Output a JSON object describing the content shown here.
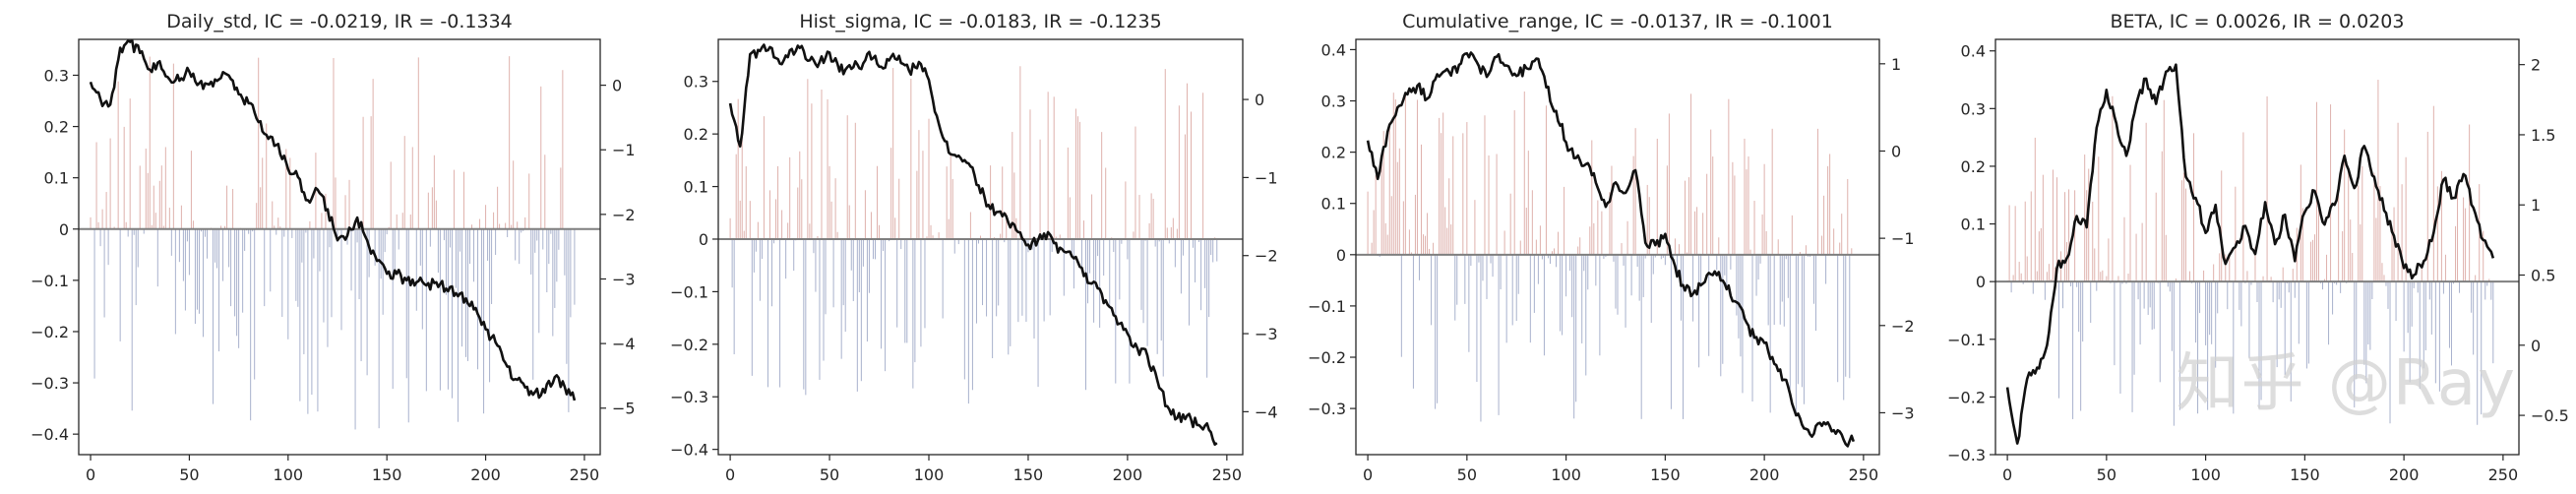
{
  "figure": {
    "watermark": "知乎 @Ray"
  },
  "chart_data": [
    {
      "type": "bar+line",
      "title": "Daily_std, IC = -0.0219, IR = -0.1334",
      "xlabel": "",
      "ylabel": "",
      "ylabel_right": "",
      "xlim": [
        -6,
        258
      ],
      "ylim": [
        -0.44,
        0.37
      ],
      "y2lim": [
        -5.72,
        0.71
      ],
      "xticks": [
        0,
        50,
        100,
        150,
        200,
        250
      ],
      "yticks": [
        0.3,
        0.2,
        0.1,
        0.0,
        -0.1,
        -0.2,
        -0.3,
        -0.4
      ],
      "y2ticks": [
        0,
        -1,
        -2,
        -3,
        -4,
        -5
      ],
      "grid": false,
      "bar_seed": 11,
      "bar_pos_max": 0.34,
      "bar_neg_max": 0.4,
      "bar_pos_frac": 0.42,
      "bar_colors": {
        "positive": "#d9a49f",
        "negative": "#9aa4c4"
      },
      "line_color": "#111111",
      "ic_series_summary": {
        "n": 246,
        "positive_color": "#d9a49f",
        "negative_color": "#9aa4c4"
      },
      "cumulative_ic_keypoints": {
        "x": [
          0,
          5,
          10,
          15,
          20,
          25,
          30,
          35,
          40,
          45,
          50,
          55,
          60,
          65,
          70,
          75,
          80,
          85,
          90,
          95,
          100,
          105,
          110,
          115,
          120,
          125,
          130,
          135,
          140,
          145,
          150,
          155,
          160,
          165,
          170,
          175,
          180,
          185,
          190,
          195,
          200,
          205,
          210,
          215,
          220,
          225,
          230,
          235,
          240,
          245
        ],
        "y": [
          0.05,
          -0.22,
          -0.3,
          0.58,
          0.67,
          0.5,
          0.24,
          0.37,
          0.09,
          0.07,
          0.21,
          0.03,
          0.01,
          0.09,
          0.15,
          -0.14,
          -0.28,
          -0.57,
          -0.83,
          -0.91,
          -1.3,
          -1.42,
          -1.78,
          -1.62,
          -1.92,
          -2.4,
          -2.33,
          -2.05,
          -2.4,
          -2.72,
          -2.92,
          -2.92,
          -3.02,
          -3.05,
          -3.1,
          -3.05,
          -3.15,
          -3.22,
          -3.3,
          -3.45,
          -3.78,
          -3.98,
          -4.3,
          -4.55,
          -4.68,
          -4.75,
          -4.76,
          -4.52,
          -4.67,
          -4.88
        ]
      }
    },
    {
      "type": "bar+line",
      "title": "Hist_sigma, IC = -0.0183, IR = -0.1235",
      "xlabel": "",
      "ylabel": "",
      "ylabel_right": "",
      "xlim": [
        -6,
        258
      ],
      "ylim": [
        -0.41,
        0.38
      ],
      "y2lim": [
        -4.55,
        0.77
      ],
      "xticks": [
        0,
        50,
        100,
        150,
        200,
        250
      ],
      "yticks": [
        0.3,
        0.2,
        0.1,
        0.0,
        -0.1,
        -0.2,
        -0.3,
        -0.4
      ],
      "y2ticks": [
        0,
        -1,
        -2,
        -3,
        -4
      ],
      "grid": false,
      "bar_seed": 23,
      "bar_pos_max": 0.33,
      "bar_neg_max": 0.32,
      "bar_pos_frac": 0.45,
      "bar_colors": {
        "positive": "#d9a49f",
        "negative": "#9aa4c4"
      },
      "line_color": "#111111",
      "cumulative_ic_keypoints": {
        "x": [
          0,
          5,
          10,
          15,
          20,
          25,
          30,
          35,
          40,
          45,
          50,
          55,
          60,
          65,
          70,
          75,
          80,
          85,
          90,
          95,
          100,
          105,
          110,
          115,
          120,
          125,
          130,
          135,
          140,
          145,
          150,
          155,
          160,
          165,
          170,
          175,
          180,
          185,
          190,
          195,
          200,
          205,
          210,
          215,
          220,
          225,
          230,
          235,
          240,
          245
        ],
        "y": [
          -0.05,
          -0.6,
          0.58,
          0.62,
          0.67,
          0.46,
          0.63,
          0.66,
          0.5,
          0.48,
          0.6,
          0.36,
          0.44,
          0.4,
          0.61,
          0.42,
          0.5,
          0.56,
          0.37,
          0.48,
          0.25,
          -0.31,
          -0.68,
          -0.72,
          -0.82,
          -1.1,
          -1.35,
          -1.44,
          -1.58,
          -1.7,
          -1.86,
          -1.8,
          -1.7,
          -1.96,
          -1.95,
          -2.08,
          -2.35,
          -2.42,
          -2.63,
          -2.88,
          -3.0,
          -3.19,
          -3.28,
          -3.6,
          -3.93,
          -4.08,
          -4.05,
          -4.17,
          -4.15,
          -4.4
        ]
      }
    },
    {
      "type": "bar+line",
      "title": "Cumulative_range, IC = -0.0137, IR = -0.1001",
      "xlabel": "",
      "ylabel": "",
      "ylabel_right": "",
      "xlim": [
        -6,
        258
      ],
      "ylim": [
        -0.39,
        0.42
      ],
      "y2lim": [
        -3.48,
        1.28
      ],
      "xticks": [
        0,
        50,
        100,
        150,
        200,
        250
      ],
      "yticks": [
        0.4,
        0.3,
        0.2,
        0.1,
        0.0,
        -0.1,
        -0.2,
        -0.3
      ],
      "y2ticks": [
        1,
        0,
        -1,
        -2,
        -3
      ],
      "grid": false,
      "bar_seed": 37,
      "bar_pos_max": 0.32,
      "bar_neg_max": 0.33,
      "bar_pos_frac": 0.46,
      "bar_colors": {
        "positive": "#d9a49f",
        "negative": "#9aa4c4"
      },
      "line_color": "#111111",
      "cumulative_ic_keypoints": {
        "x": [
          0,
          5,
          10,
          15,
          20,
          25,
          30,
          35,
          40,
          45,
          50,
          55,
          60,
          65,
          70,
          75,
          80,
          85,
          90,
          95,
          100,
          105,
          110,
          115,
          120,
          125,
          130,
          135,
          140,
          145,
          150,
          155,
          160,
          165,
          170,
          175,
          180,
          185,
          190,
          195,
          200,
          205,
          210,
          215,
          220,
          225,
          230,
          235,
          240,
          245
        ],
        "y": [
          0.12,
          -0.32,
          0.22,
          0.5,
          0.65,
          0.75,
          0.6,
          0.88,
          0.94,
          0.9,
          1.12,
          1.02,
          0.85,
          1.08,
          0.98,
          0.86,
          0.95,
          1.06,
          0.73,
          0.46,
          0.1,
          -0.08,
          -0.15,
          -0.36,
          -0.64,
          -0.36,
          -0.48,
          -0.22,
          -1.05,
          -1.08,
          -0.95,
          -1.32,
          -1.6,
          -1.6,
          -1.5,
          -1.38,
          -1.52,
          -1.72,
          -1.92,
          -2.14,
          -2.2,
          -2.44,
          -2.62,
          -2.96,
          -3.18,
          -3.24,
          -3.11,
          -3.2,
          -3.31,
          -3.33
        ]
      }
    },
    {
      "type": "bar+line",
      "title": "BETA, IC = 0.0026, IR = 0.0203",
      "xlabel": "",
      "ylabel": "",
      "ylabel_right": "",
      "xlim": [
        -6,
        258
      ],
      "ylim": [
        -0.3,
        0.42
      ],
      "y2lim": [
        -0.78,
        2.18
      ],
      "xticks": [
        0,
        50,
        100,
        150,
        200,
        250
      ],
      "yticks": [
        0.4,
        0.3,
        0.2,
        0.1,
        0.0,
        -0.1,
        -0.2,
        -0.3
      ],
      "y2ticks": [
        2.0,
        1.5,
        1.0,
        0.5,
        0.0,
        -0.5
      ],
      "grid": false,
      "bar_seed": 53,
      "bar_pos_max": 0.35,
      "bar_neg_max": 0.26,
      "bar_pos_frac": 0.5,
      "bar_colors": {
        "positive": "#d9a49f",
        "negative": "#9aa4c4"
      },
      "line_color": "#111111",
      "cumulative_ic_keypoints": {
        "x": [
          0,
          5,
          10,
          15,
          20,
          25,
          30,
          35,
          40,
          45,
          50,
          55,
          60,
          65,
          70,
          75,
          80,
          85,
          90,
          95,
          100,
          105,
          110,
          115,
          120,
          125,
          130,
          135,
          140,
          145,
          150,
          155,
          160,
          165,
          170,
          175,
          180,
          185,
          190,
          195,
          200,
          205,
          210,
          215,
          220,
          225,
          230,
          235,
          240,
          245
        ],
        "y": [
          -0.3,
          -0.7,
          -0.24,
          -0.16,
          0.0,
          0.55,
          0.62,
          0.92,
          0.84,
          1.55,
          1.82,
          1.58,
          1.35,
          1.72,
          1.9,
          1.72,
          1.95,
          2.0,
          1.2,
          1.05,
          0.8,
          1.0,
          0.58,
          0.7,
          0.85,
          0.65,
          1.02,
          0.72,
          0.93,
          0.6,
          0.95,
          1.1,
          0.86,
          1.0,
          1.35,
          1.12,
          1.42,
          1.2,
          0.96,
          0.78,
          0.55,
          0.5,
          0.6,
          0.8,
          1.18,
          1.05,
          1.22,
          0.98,
          0.75,
          0.62
        ]
      }
    }
  ]
}
